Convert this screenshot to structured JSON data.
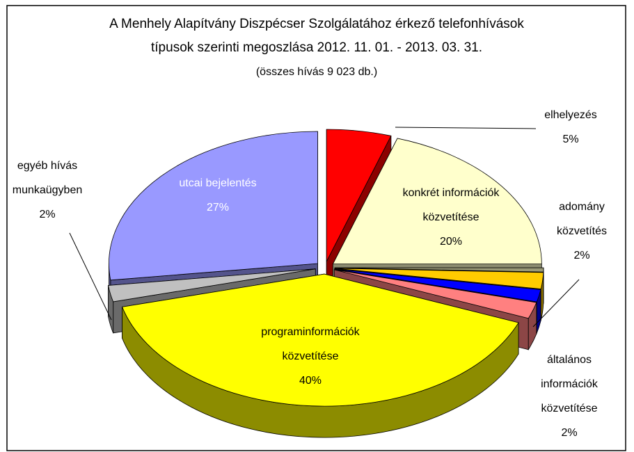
{
  "chart_data": {
    "type": "pie3d",
    "title": "A Menhely Alapítvány Diszpécser Szolgálatához érkező telefonhívások\ntípusok szerinti megoszlása 2012. 11. 01. - 2013. 03. 31.",
    "subtitle": "(összes hívás 9 023 db.)",
    "categories": [
      "elhelyezés",
      "konkrét információk\nközvetítése",
      null,
      "adomány\nközvetítés",
      null,
      "általános\ninformációk\nközvetítése",
      "programinformációk\nközvetítése",
      "egyéb hívás\nmunkaügyben",
      "utcai bejelentés"
    ],
    "values": [
      5,
      20,
      0.5,
      2,
      1.5,
      2,
      40,
      2,
      27
    ],
    "value_labels": [
      "5%",
      "20%",
      null,
      "2%",
      null,
      "2%",
      "40%",
      "2%",
      "27%"
    ],
    "colors": [
      "#ff0000",
      "#ffffcc",
      "#9a9a78",
      "#ffcc00",
      "#0000ff",
      "#ff8080",
      "#ffff00",
      "#c0c0c0",
      "#9999ff"
    ]
  }
}
